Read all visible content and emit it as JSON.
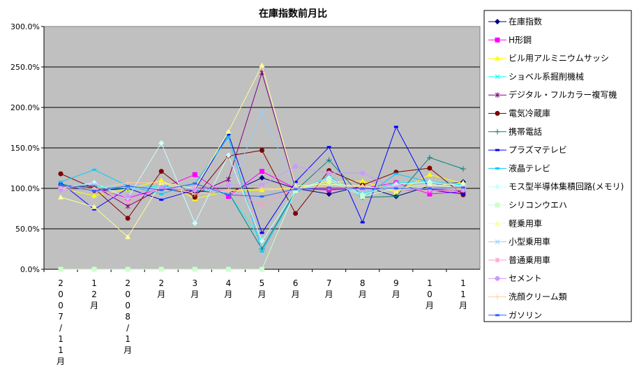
{
  "chart_data": {
    "type": "line",
    "title": "在庫指数前月比",
    "ylim": [
      0,
      300
    ],
    "yticks": [
      "0.0%",
      "50.0%",
      "100.0%",
      "150.0%",
      "200.0%",
      "250.0%",
      "300.0%"
    ],
    "grid": true,
    "legend_placement": "right",
    "categories": [
      "2007/11月",
      "12月",
      "2008/1月",
      "2月",
      "3月",
      "4月",
      "5月",
      "6月",
      "7月",
      "8月",
      "9月",
      "10月",
      "11月"
    ],
    "series": [
      {
        "name": "在庫指数",
        "color": "#000080",
        "marker": "diamond",
        "values": [
          105,
          97,
          100,
          100,
          97,
          94,
          113,
          100,
          93,
          103,
          90,
          103,
          108
        ]
      },
      {
        "name": "H形鋼",
        "color": "#FF00FF",
        "marker": "square",
        "values": [
          102,
          101,
          88,
          100,
          117,
          90,
          121,
          100,
          98,
          100,
          107,
          93,
          96
        ]
      },
      {
        "name": "ビル用アルミニウムサッシ",
        "color": "#FFFF00",
        "marker": "triangle",
        "values": [
          100,
          91,
          99,
          110,
          87,
          97,
          98,
          100,
          108,
          109,
          95,
          117,
          106
        ]
      },
      {
        "name": "ショベル系掘削機械",
        "color": "#00FFFF",
        "marker": "x",
        "values": [
          100,
          103,
          100,
          103,
          98,
          94,
          35,
          97,
          110,
          93,
          107,
          107,
          104
        ]
      },
      {
        "name": "デジタル・フルカラー複写機",
        "color": "#800080",
        "marker": "star",
        "values": [
          102,
          103,
          78,
          100,
          93,
          111,
          243,
          100,
          99,
          100,
          98,
          99,
          97
        ]
      },
      {
        "name": "電気冷蔵庫",
        "color": "#800000",
        "marker": "circle",
        "values": [
          118,
          100,
          63,
          121,
          89,
          140,
          147,
          69,
          122,
          104,
          120,
          125,
          92
        ]
      },
      {
        "name": "携帯電話",
        "color": "#008080",
        "marker": "plus",
        "values": [
          105,
          100,
          100,
          100,
          100,
          95,
          25,
          97,
          135,
          89,
          90,
          138,
          124
        ]
      },
      {
        "name": "プラズマテレビ",
        "color": "#0000FF",
        "marker": "dash",
        "values": [
          107,
          74,
          100,
          86,
          98,
          167,
          45,
          108,
          151,
          58,
          176,
          98,
          93
        ]
      },
      {
        "name": "液晶テレビ",
        "color": "#00CCFF",
        "marker": "dash",
        "values": [
          108,
          123,
          103,
          93,
          106,
          163,
          22,
          95,
          115,
          88,
          118,
          108,
          105
        ]
      },
      {
        "name": "モス型半導体集積回路(メモリ)",
        "color": "#CCFFFF",
        "marker": "diamond",
        "values": [
          100,
          107,
          88,
          156,
          57,
          141,
          35,
          97,
          113,
          92,
          105,
          108,
          103
        ]
      },
      {
        "name": "シリコンウエハ",
        "color": "#CCFFCC",
        "marker": "square",
        "values": [
          0,
          0,
          0,
          0,
          0,
          0,
          0,
          97,
          110,
          90,
          100,
          105,
          100
        ]
      },
      {
        "name": "軽乗用車",
        "color": "#FFFF99",
        "marker": "triangle",
        "values": [
          89,
          77,
          40,
          107,
          100,
          170,
          252,
          103,
          105,
          103,
          97,
          103,
          107
        ]
      },
      {
        "name": "小型乗用車",
        "color": "#99CCFF",
        "marker": "x",
        "values": [
          103,
          105,
          100,
          100,
          100,
          95,
          195,
          100,
          103,
          97,
          100,
          100,
          102
        ]
      },
      {
        "name": "普通乗用車",
        "color": "#FF99CC",
        "marker": "star",
        "values": [
          100,
          98,
          83,
          101,
          100,
          97,
          80,
          100,
          100,
          100,
          102,
          97,
          98
        ]
      },
      {
        "name": "セメント",
        "color": "#CC99FF",
        "marker": "circle",
        "values": [
          98,
          99,
          90,
          100,
          98,
          104,
          104,
          127,
          119,
          119,
          100,
          100,
          98
        ]
      },
      {
        "name": "洗顔クリーム類",
        "color": "#FFCC99",
        "marker": "plus",
        "values": [
          103,
          99,
          107,
          107,
          93,
          97,
          100,
          100,
          103,
          102,
          98,
          100,
          100
        ]
      },
      {
        "name": "ガソリン",
        "color": "#3366FF",
        "marker": "dash",
        "values": [
          104,
          97,
          103,
          98,
          106,
          92,
          90,
          99,
          101,
          100,
          100,
          100,
          101
        ]
      }
    ]
  }
}
